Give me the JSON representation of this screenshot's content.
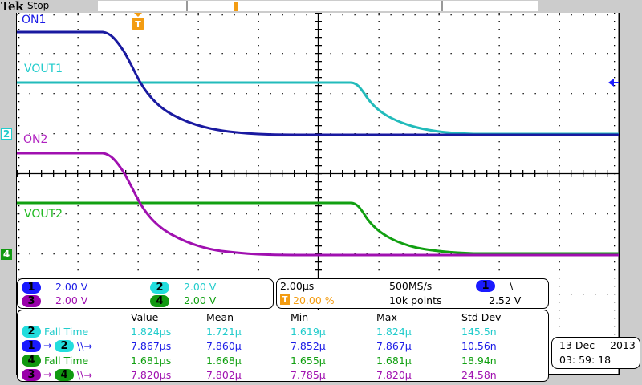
{
  "topbar": {
    "brand": "Tek",
    "run_state": "Stop"
  },
  "waveform_labels": {
    "ch1": "ON1",
    "ch2": "VOUT1",
    "ch3": "ON2",
    "ch4": "VOUT2"
  },
  "markers": {
    "ch2": "2",
    "ch4": "4",
    "trigger": "T"
  },
  "channels": [
    {
      "num": "1",
      "scale": "2.00 V",
      "color": "#1a1aff"
    },
    {
      "num": "2",
      "scale": "2.00 V",
      "color": "#22dddd"
    },
    {
      "num": "3",
      "scale": "2.00 V",
      "color": "#9900aa"
    },
    {
      "num": "4",
      "scale": "2.00 V",
      "color": "#119911"
    }
  ],
  "horizontal": {
    "time_per_div": "2.00µs",
    "sample_rate": "500MS/s",
    "trigger_position": "20.00 %",
    "record_length": "10k points",
    "trigger_source": "1",
    "trigger_slope": "\\",
    "trigger_level": "2.52 V"
  },
  "measurements": {
    "headers": [
      "Value",
      "Mean",
      "Min",
      "Max",
      "Std Dev"
    ],
    "rows": [
      {
        "label": "Fall Time",
        "src": "2",
        "value": "1.824µs",
        "mean": "1.721µ",
        "min": "1.619µ",
        "max": "1.824µ",
        "std": "145.5n"
      },
      {
        "label": "\\\\→",
        "src": "1",
        "dst": "2",
        "value": "7.867µs",
        "mean": "7.860µ",
        "min": "7.852µ",
        "max": "7.867µ",
        "std": "10.56n"
      },
      {
        "label": "Fall Time",
        "src": "4",
        "value": "1.681µs",
        "mean": "1.668µ",
        "min": "1.655µ",
        "max": "1.681µ",
        "std": "18.94n"
      },
      {
        "label": "\\\\→",
        "src": "3",
        "dst": "4",
        "value": "7.820µs",
        "mean": "7.802µ",
        "min": "7.785µ",
        "max": "7.820µ",
        "std": "24.58n"
      }
    ]
  },
  "datetime": {
    "date": "13 Dec",
    "year": "2013",
    "time": "03: 59: 18"
  },
  "colors": {
    "ch1": "#1a1aa0",
    "ch2": "#22bbbb",
    "ch3": "#a010b0",
    "ch4": "#11a011",
    "trigger": "#f39c12"
  }
}
